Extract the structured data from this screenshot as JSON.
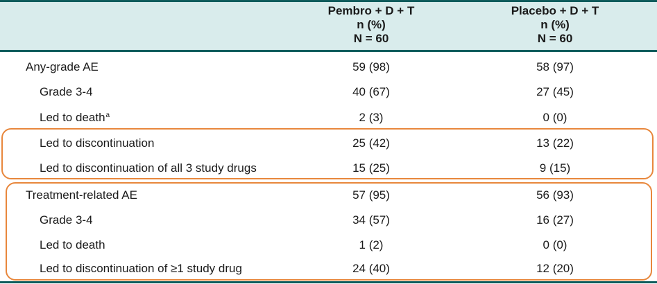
{
  "colors": {
    "rule": "#0f5c5c",
    "header_band": "#d9ecec",
    "highlight_border": "#e8873c"
  },
  "columns": [
    {
      "line1": "Pembro + D + T",
      "line2": "n (%)",
      "line3": "N = 60"
    },
    {
      "line1": "Placebo + D + T",
      "line2": "n (%)",
      "line3": "N = 60"
    }
  ],
  "rows": [
    {
      "label": "Any-grade AE",
      "footnote": "",
      "v1": "59 (98)",
      "v2": "58 (97)"
    },
    {
      "label": "Grade 3-4",
      "footnote": "",
      "v1": "40 (67)",
      "v2": "27 (45)"
    },
    {
      "label": "Led to death",
      "footnote": "a",
      "v1": "2 (3)",
      "v2": "0 (0)"
    },
    {
      "label": "Led to discontinuation",
      "footnote": "",
      "v1": "25 (42)",
      "v2": "13 (22)"
    },
    {
      "label": "Led to discontinuation of all 3 study drugs",
      "footnote": "",
      "v1": "15 (25)",
      "v2": "9 (15)"
    },
    {
      "label": "Treatment-related AE",
      "footnote": "",
      "v1": "57 (95)",
      "v2": "56 (93)"
    },
    {
      "label": "Grade 3-4",
      "footnote": "",
      "v1": "34 (57)",
      "v2": "16 (27)"
    },
    {
      "label": "Led to death",
      "footnote": "",
      "v1": "1 (2)",
      "v2": "0 (0)"
    },
    {
      "label": "Led to discontinuation of ≥1 study drug",
      "footnote": "",
      "v1": "24 (40)",
      "v2": "12 (20)"
    }
  ]
}
